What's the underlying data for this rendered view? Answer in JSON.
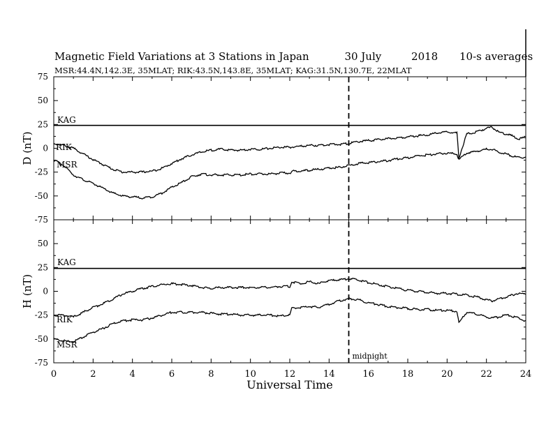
{
  "header": {
    "title": "Magnetic Field Variations at 3 Stations in Japan",
    "date": "30 July",
    "year": "2018",
    "averaging": "10-s averages",
    "stations_line": "MSR:44.4N,142.3E, 35MLAT;  RIK:43.5N,143.8E, 35MLAT;  KAG:31.5N,130.7E, 22MLAT"
  },
  "chart_data": [
    {
      "type": "line",
      "panel": "top",
      "ylabel": "D (nT)",
      "ylim": [
        -75,
        75
      ],
      "yticks": [
        "75",
        "50",
        "25",
        "0",
        "-25",
        "-50",
        "-75"
      ],
      "xlim": [
        0,
        24
      ],
      "series": [
        {
          "name": "KAG",
          "x": [
            0,
            24
          ],
          "values": [
            24,
            24
          ]
        },
        {
          "name": "RIK",
          "x": [
            0,
            0.5,
            1,
            1.5,
            2,
            2.5,
            3,
            3.5,
            4,
            4.5,
            5,
            5.5,
            6,
            6.5,
            7,
            7.5,
            8,
            8.5,
            9,
            9.5,
            10,
            10.5,
            11,
            11.5,
            12,
            12.5,
            13,
            13.5,
            14,
            14.5,
            15,
            15.5,
            16,
            16.5,
            17,
            17.5,
            18,
            18.5,
            19,
            19.5,
            20,
            20.5,
            20.6,
            21,
            21.5,
            22,
            22.3,
            22.6,
            23,
            23.3,
            23.6,
            24
          ],
          "values": [
            5,
            3,
            0,
            -6,
            -12,
            -17,
            -22,
            -25,
            -25,
            -25,
            -24,
            -21,
            -16,
            -11,
            -7,
            -4,
            -2,
            -1,
            -2,
            -2,
            -1,
            -1,
            0,
            1,
            1,
            2,
            3,
            3,
            4,
            4,
            5,
            7,
            8,
            9,
            10,
            11,
            12,
            13,
            14,
            16,
            17,
            16,
            -10,
            15,
            17,
            21,
            22,
            17,
            15,
            13,
            10,
            11
          ]
        },
        {
          "name": "MSR",
          "x": [
            0,
            0.5,
            1,
            1.5,
            2,
            2.5,
            3,
            3.5,
            4,
            4.5,
            5,
            5.5,
            6,
            6.5,
            7,
            7.5,
            8,
            8.5,
            9,
            9.5,
            10,
            10.5,
            11,
            11.5,
            12,
            12.2,
            12.5,
            13,
            13.5,
            14,
            14.5,
            15,
            15.5,
            16,
            16.5,
            17,
            17.5,
            18,
            18.5,
            19,
            19.5,
            20,
            20.5,
            20.6,
            21,
            21.5,
            22,
            22.3,
            22.6,
            23,
            23.3,
            23.6,
            24
          ],
          "values": [
            -12,
            -18,
            -28,
            -33,
            -37,
            -42,
            -47,
            -50,
            -51,
            -52,
            -51,
            -47,
            -41,
            -36,
            -30,
            -27,
            -28,
            -28,
            -28,
            -28,
            -27,
            -27,
            -27,
            -26,
            -26,
            -24,
            -24,
            -23,
            -22,
            -21,
            -20,
            -18,
            -16,
            -15,
            -14,
            -13,
            -11,
            -10,
            -8,
            -7,
            -6,
            -5,
            -6,
            -12,
            -5,
            -3,
            -1,
            -1,
            -4,
            -6,
            -8,
            -10,
            -9
          ]
        }
      ],
      "annotations": [
        "KAG",
        "RIK",
        "MSR"
      ]
    },
    {
      "type": "line",
      "panel": "bottom",
      "ylabel": "H (nT)",
      "xlabel": "Universal Time",
      "ylim": [
        -75,
        75
      ],
      "yticks": [
        "75",
        "50",
        "25",
        "0",
        "-25",
        "-50",
        "-75"
      ],
      "xlim": [
        0,
        24
      ],
      "xticks": [
        "0",
        "2",
        "4",
        "6",
        "8",
        "10",
        "12",
        "14",
        "16",
        "18",
        "20",
        "22",
        "24"
      ],
      "series": [
        {
          "name": "KAG",
          "x": [
            0,
            24
          ],
          "values": [
            24,
            24
          ]
        },
        {
          "name": "RIK",
          "x": [
            0,
            0.5,
            1,
            1.5,
            2,
            2.5,
            3,
            3.5,
            4,
            4.5,
            5,
            5.5,
            6,
            6.5,
            7,
            7.5,
            8,
            8.5,
            9,
            9.5,
            10,
            10.5,
            11,
            11.5,
            12,
            12.1,
            12.5,
            13,
            13.5,
            13.7,
            14,
            14.5,
            15,
            15.5,
            16,
            16.5,
            17,
            17.5,
            18,
            18.5,
            19,
            19.5,
            20,
            20.5,
            21,
            21.5,
            22,
            22.3,
            22.6,
            23,
            23.3,
            23.6,
            24
          ],
          "values": [
            -25,
            -25,
            -27,
            -22,
            -17,
            -13,
            -8,
            -3,
            0,
            3,
            5,
            7,
            8,
            7,
            6,
            4,
            3,
            4,
            4,
            4,
            4,
            4,
            4,
            5,
            5,
            10,
            8,
            10,
            8,
            10,
            11,
            12,
            13,
            12,
            9,
            7,
            5,
            3,
            1,
            0,
            -1,
            -2,
            -2,
            -3,
            -4,
            -6,
            -9,
            -10,
            -8,
            -6,
            -4,
            -2,
            -3
          ]
        },
        {
          "name": "MSR",
          "x": [
            0,
            0.5,
            1,
            1.5,
            2,
            2.5,
            3,
            3.5,
            4,
            4.5,
            5,
            5.5,
            6,
            6.5,
            7,
            7.5,
            8,
            8.5,
            9,
            9.5,
            10,
            10.5,
            11,
            11.5,
            12,
            12.1,
            12.5,
            13,
            13.5,
            13.7,
            14,
            14.5,
            15,
            15.5,
            16,
            16.5,
            17,
            17.5,
            18,
            18.5,
            19,
            19.5,
            20,
            20.5,
            20.6,
            21,
            21.5,
            22,
            22.3,
            22.6,
            23,
            23.3,
            23.6,
            24
          ],
          "values": [
            -50,
            -52,
            -53,
            -48,
            -43,
            -39,
            -34,
            -31,
            -30,
            -30,
            -28,
            -25,
            -22,
            -22,
            -22,
            -22,
            -23,
            -24,
            -24,
            -25,
            -25,
            -25,
            -25,
            -26,
            -25,
            -18,
            -17,
            -16,
            -17,
            -15,
            -14,
            -10,
            -8,
            -9,
            -12,
            -14,
            -16,
            -17,
            -18,
            -19,
            -19,
            -20,
            -20,
            -21,
            -33,
            -22,
            -24,
            -27,
            -28,
            -27,
            -25,
            -26,
            -28,
            -31
          ]
        }
      ],
      "annotations": [
        "KAG",
        "RIK",
        "MSR",
        "midnight"
      ]
    }
  ],
  "marker": {
    "label": "midnight",
    "x": 15
  }
}
